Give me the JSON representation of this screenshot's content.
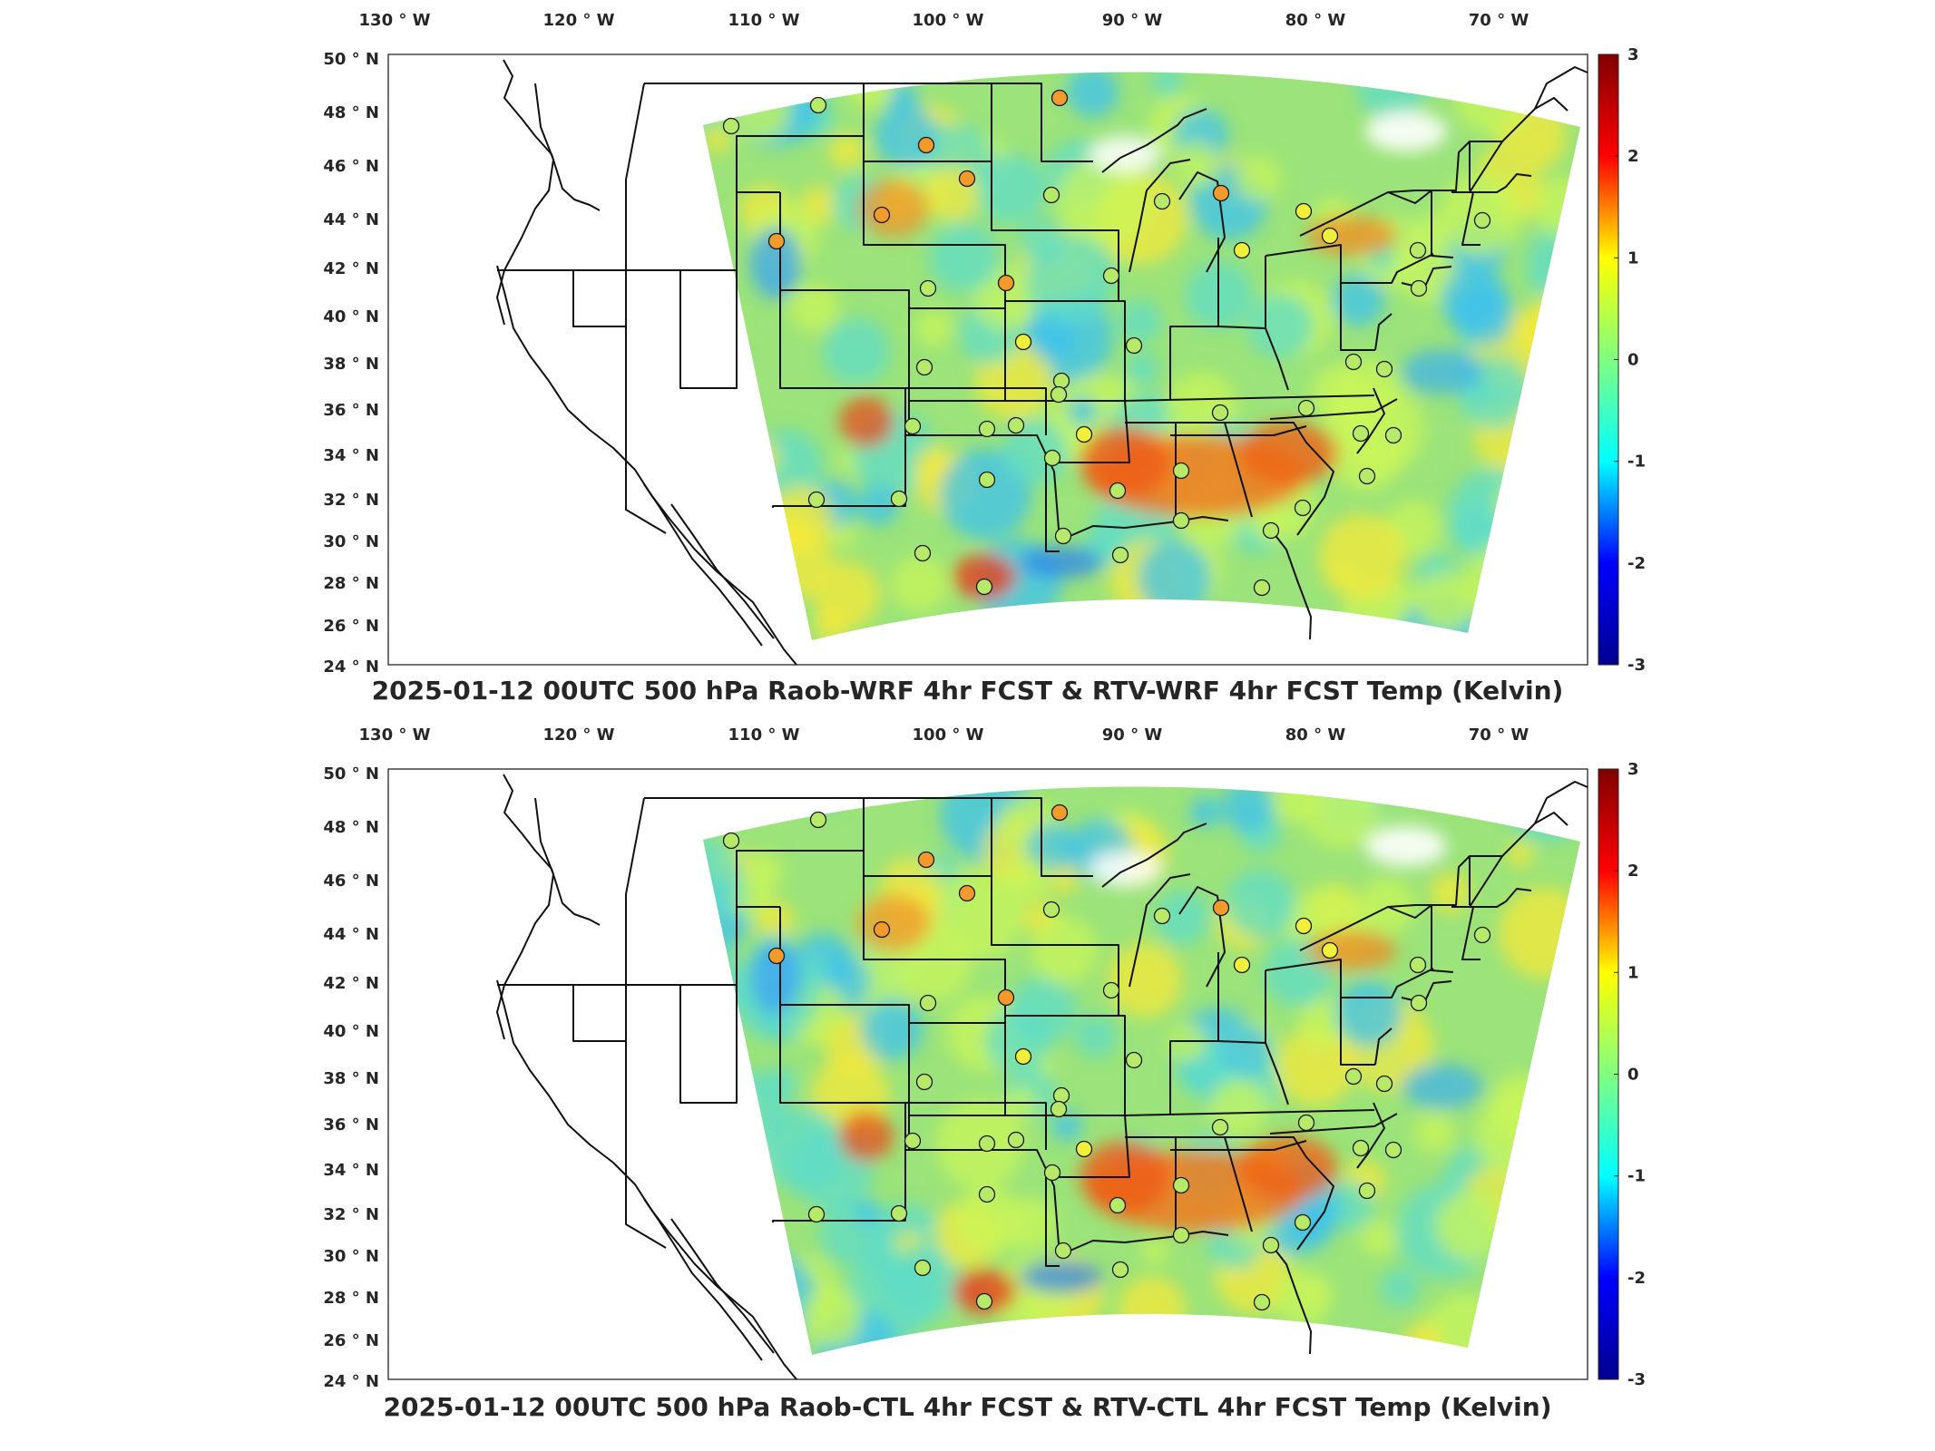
{
  "panels": [
    {
      "title": "2025-01-12 00UTC 500 hPa Raob-WRF 4hr FCST & RTV-WRF 4hr FCST Temp (Kelvin)"
    },
    {
      "title": "2025-01-12 00UTC 500 hPa Raob-CTL 4hr FCST & RTV-CTL 4hr FCST Temp (Kelvin)"
    }
  ],
  "lon_labels": [
    "130",
    "120",
    "110",
    "100",
    "90",
    "80",
    "70"
  ],
  "lon_suffix": "W",
  "lat_labels": [
    "50",
    "48",
    "46",
    "44",
    "42",
    "40",
    "38",
    "36",
    "34",
    "32",
    "30",
    "28",
    "26",
    "24"
  ],
  "lat_suffix": "N",
  "degree_symbol": "°",
  "colorbar": {
    "labels": [
      "3",
      "2",
      "1",
      "0",
      "-1",
      "-2",
      "-3"
    ],
    "range": [
      -3,
      3
    ],
    "colormap": "jet",
    "colors": [
      "#00008f",
      "#0000ff",
      "#00ffff",
      "#80ff80",
      "#ffff00",
      "#ff0000",
      "#800000"
    ]
  },
  "field_base_color": "#9be37a",
  "warm_region_color": "#f07a1e",
  "cool_region_color": "#3aa3f5"
}
